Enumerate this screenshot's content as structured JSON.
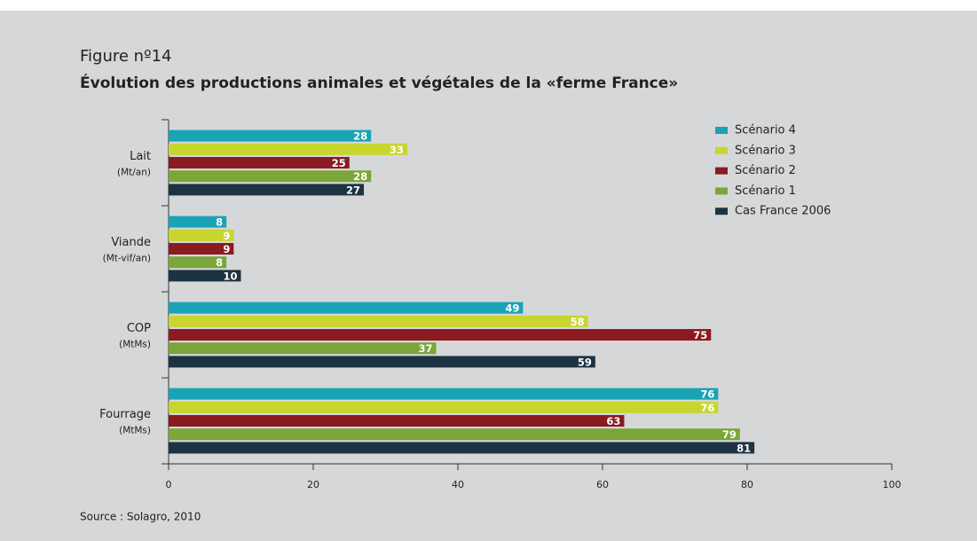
{
  "chart_data": {
    "type": "hbar",
    "title": "Figure nº14",
    "subtitle": "Évolution des productions animales et végétales de la «ferme France»",
    "source": "Source : Solagro, 2010",
    "categories": [
      "Lait",
      "Viande",
      "COP",
      "Fourrage"
    ],
    "category_units": [
      "(Mt/an)",
      "(Mt-vif/an)",
      "(MtMs)",
      "(MtMs)"
    ],
    "series": [
      {
        "name": "Scénario 4",
        "color": "#1aa3b4",
        "values": [
          28,
          8,
          49,
          76
        ]
      },
      {
        "name": "Scénario 3",
        "color": "#c8d52f",
        "values": [
          33,
          9,
          58,
          76
        ]
      },
      {
        "name": "Scénario 2",
        "color": "#8a1b20",
        "values": [
          25,
          9,
          75,
          63
        ]
      },
      {
        "name": "Scénario 1",
        "color": "#7aa63a",
        "values": [
          28,
          8,
          37,
          79
        ]
      },
      {
        "name": "Cas France 2006",
        "color": "#1e3341",
        "values": [
          27,
          10,
          59,
          81
        ]
      }
    ],
    "xlim": [
      0,
      100
    ],
    "xticks": [
      0,
      20,
      40,
      60,
      80,
      100
    ],
    "legend": "top-right"
  }
}
